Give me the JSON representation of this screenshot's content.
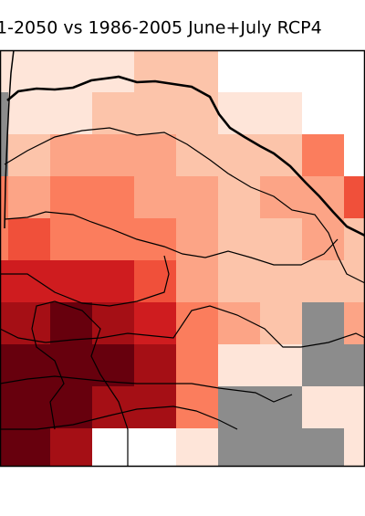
{
  "title": "1-2050 vs 1986-2005 June+July RCP4"
}
